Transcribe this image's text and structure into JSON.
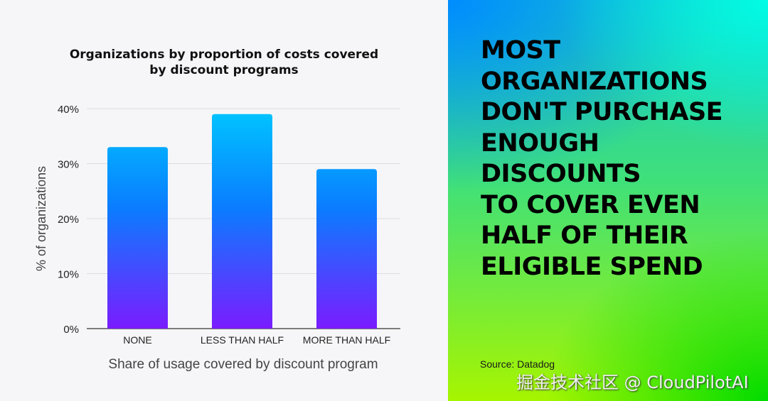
{
  "chart_data": {
    "type": "bar",
    "title": "Organizations by proportion of costs covered by discount programs",
    "title_lines": [
      "Organizations by proportion of costs covered",
      "by discount programs"
    ],
    "categories": [
      "NONE",
      "LESS THAN HALF",
      "MORE THAN HALF"
    ],
    "values": [
      33,
      39,
      29
    ],
    "xlabel": "Share of usage covered by discount program",
    "ylabel": "% of organizations",
    "ylim": [
      0,
      40
    ],
    "yticks": [
      0,
      10,
      20,
      30,
      40
    ],
    "ytick_labels": [
      "0%",
      "10%",
      "20%",
      "30%",
      "40%"
    ],
    "grid": true,
    "bar_gradient": [
      "#00c6ff",
      "#0a7dff",
      "#7a1cff"
    ]
  },
  "panel": {
    "headline_lines": [
      "MOST",
      "ORGANIZATIONS",
      "DON'T PURCHASE",
      "ENOUGH",
      "DISCOUNTS",
      "TO COVER EVEN",
      "HALF OF THEIR",
      "ELIGIBLE SPEND"
    ],
    "source": "Source: Datadog",
    "watermark": "掘金技术社区 @ CloudPilotAI"
  }
}
